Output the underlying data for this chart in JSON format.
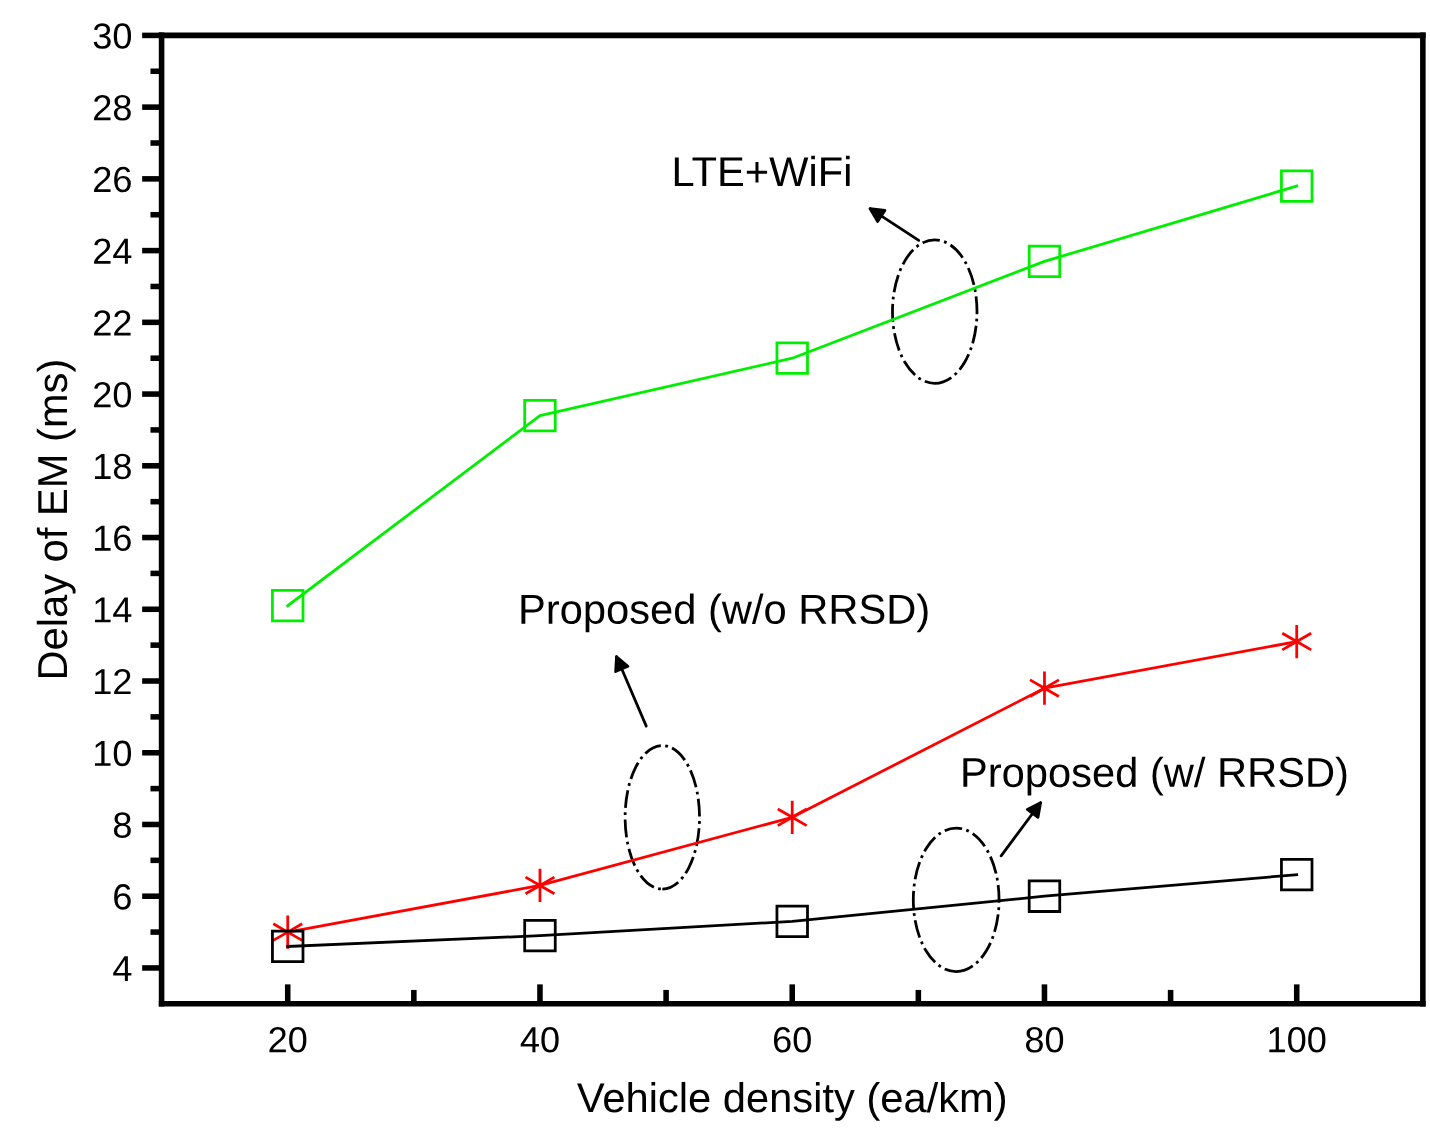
{
  "chart_data": {
    "type": "line",
    "xlabel": "Vehicle density (ea/km)",
    "ylabel": "Delay of EM (ms)",
    "x": [
      20,
      40,
      60,
      80,
      100
    ],
    "series": [
      {
        "color": "#00ee00",
        "marker": "square",
        "values": [
          14.1,
          19.4,
          21.0,
          23.7,
          25.8
        ]
      },
      {
        "color": "#ff0000",
        "marker": "cross",
        "values": [
          5.0,
          6.3,
          8.2,
          11.8,
          13.1
        ]
      },
      {
        "color": "#000000",
        "marker": "square",
        "values": [
          4.6,
          4.9,
          5.3,
          6.0,
          6.6
        ]
      }
    ],
    "xlim": [
      10,
      110
    ],
    "xticks": [
      20,
      {
        "value": 30,
        "label": null
      },
      40,
      {
        "value": 50,
        "label": null
      },
      60,
      {
        "value": 70,
        "label": null
      },
      80,
      {
        "value": 90,
        "label": null
      },
      100
    ],
    "ylim": [
      3,
      30
    ],
    "yticks": [
      4,
      {
        "value": 5,
        "label": null
      },
      6,
      {
        "value": 7,
        "label": null
      },
      8,
      {
        "value": 9,
        "label": null
      },
      10,
      {
        "value": 11,
        "label": null
      },
      12,
      {
        "value": 13,
        "label": null
      },
      14,
      {
        "value": 15,
        "label": null
      },
      16,
      {
        "value": 17,
        "label": null
      },
      18,
      {
        "value": 19,
        "label": null
      },
      20,
      {
        "value": 21,
        "label": null
      },
      22,
      {
        "value": 23,
        "label": null
      },
      24,
      {
        "value": 25,
        "label": null
      },
      26,
      {
        "value": 27,
        "label": null
      },
      28,
      {
        "value": 29,
        "label": null
      },
      30
    ],
    "annotations": [
      "LTE+WiFi",
      "Proposed (w/o RRSD)",
      "Proposed (w/ RRSD)"
    ],
    "grid": false,
    "legend": false,
    "line_style": "solid"
  }
}
